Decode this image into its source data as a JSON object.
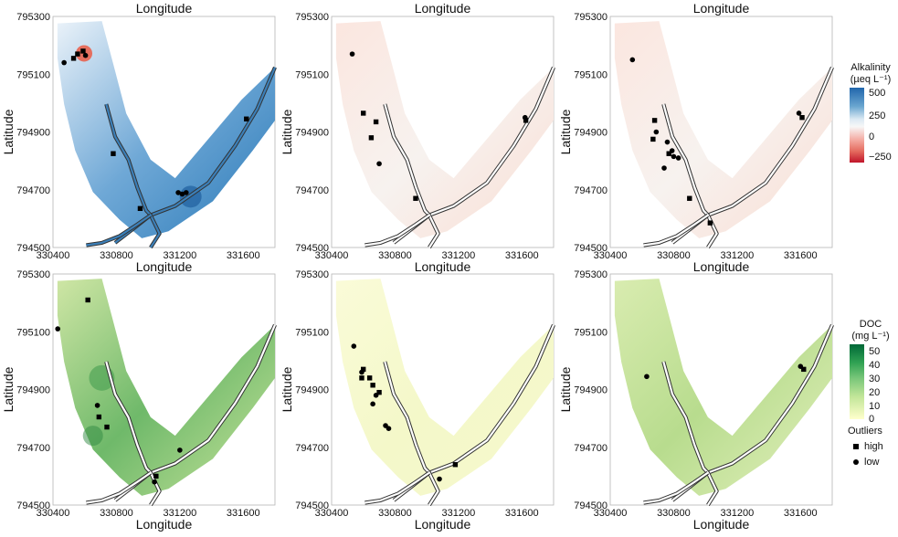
{
  "chart_data": {
    "type": "scatter",
    "colors": {
      "alk_low": "#c0142a",
      "alk_zero": "#f7f7f7",
      "alk_high": "#2166ac",
      "doc_low": "#ffffe5",
      "doc_high": "#006837",
      "river": "#ffffff",
      "river_outline": "#333333",
      "marker": "#000000",
      "panel_border": "#b5b5b5"
    },
    "panels": [
      {
        "variable": "Alkalinity",
        "xlabel": "Longitude",
        "ylabel": "Latitude",
        "xlim": [
          330400,
          331800
        ],
        "ylim": [
          794500,
          795300
        ],
        "xticks": [
          "330400",
          "330800",
          "331200",
          "331600"
        ],
        "yticks": [
          "794500",
          "794700",
          "794900",
          "795100",
          "795300"
        ],
        "field": "strong",
        "points": [
          {
            "x": 330470,
            "y": 795140,
            "o": "low"
          },
          {
            "x": 330530,
            "y": 795155,
            "o": "high"
          },
          {
            "x": 330555,
            "y": 795170,
            "o": "high"
          },
          {
            "x": 330590,
            "y": 795180,
            "o": "high"
          },
          {
            "x": 330605,
            "y": 795165,
            "o": "low"
          },
          {
            "x": 330780,
            "y": 794825,
            "o": "high"
          },
          {
            "x": 330950,
            "y": 794635,
            "o": "high"
          },
          {
            "x": 331190,
            "y": 794690,
            "o": "low"
          },
          {
            "x": 331215,
            "y": 794685,
            "o": "low"
          },
          {
            "x": 331240,
            "y": 794690,
            "o": "low"
          },
          {
            "x": 331620,
            "y": 794945,
            "o": "high"
          }
        ]
      },
      {
        "variable": "Alkalinity",
        "xlabel": "Longitude",
        "ylabel": "Latitude",
        "xlim": [
          330400,
          331800
        ],
        "ylim": [
          794500,
          795300
        ],
        "xticks": [
          "330400",
          "330800",
          "331200",
          "331600"
        ],
        "yticks": [
          "794500",
          "794700",
          "794900",
          "795100",
          "795300"
        ],
        "field": "faint",
        "points": [
          {
            "x": 330530,
            "y": 795170,
            "o": "low"
          },
          {
            "x": 330600,
            "y": 794965,
            "o": "high"
          },
          {
            "x": 330680,
            "y": 794935,
            "o": "high"
          },
          {
            "x": 330650,
            "y": 794880,
            "o": "high"
          },
          {
            "x": 330700,
            "y": 794790,
            "o": "low"
          },
          {
            "x": 330930,
            "y": 794670,
            "o": "high"
          },
          {
            "x": 331620,
            "y": 794950,
            "o": "low"
          },
          {
            "x": 331625,
            "y": 794940,
            "o": "high"
          }
        ]
      },
      {
        "variable": "Alkalinity",
        "xlabel": "Longitude",
        "ylabel": "Latitude",
        "xlim": [
          330400,
          331800
        ],
        "ylim": [
          794500,
          795300
        ],
        "xticks": [
          "330400",
          "330800",
          "331200",
          "331600"
        ],
        "yticks": [
          "794500",
          "794700",
          "794900",
          "795100",
          "795300"
        ],
        "field": "faint",
        "points": [
          {
            "x": 330540,
            "y": 795150,
            "o": "low"
          },
          {
            "x": 330680,
            "y": 794940,
            "o": "high"
          },
          {
            "x": 330670,
            "y": 794875,
            "o": "high"
          },
          {
            "x": 330690,
            "y": 794900,
            "o": "low"
          },
          {
            "x": 330770,
            "y": 794825,
            "o": "high"
          },
          {
            "x": 330790,
            "y": 794835,
            "o": "low"
          },
          {
            "x": 330800,
            "y": 794815,
            "o": "low"
          },
          {
            "x": 330740,
            "y": 794775,
            "o": "low"
          },
          {
            "x": 330760,
            "y": 794865,
            "o": "low"
          },
          {
            "x": 330830,
            "y": 794810,
            "o": "low"
          },
          {
            "x": 330900,
            "y": 794670,
            "o": "high"
          },
          {
            "x": 331030,
            "y": 794585,
            "o": "high"
          },
          {
            "x": 331590,
            "y": 794965,
            "o": "low"
          },
          {
            "x": 331610,
            "y": 794950,
            "o": "high"
          }
        ]
      },
      {
        "variable": "DOC",
        "xlabel": "Longitude",
        "ylabel": "Latitude",
        "xlim": [
          330400,
          331800
        ],
        "ylim": [
          794500,
          795300
        ],
        "xticks": [
          "330400",
          "330800",
          "331200",
          "331600"
        ],
        "yticks": [
          "794500",
          "794700",
          "794900",
          "795100",
          "795300"
        ],
        "field": "strong",
        "points": [
          {
            "x": 330430,
            "y": 795110,
            "o": "low"
          },
          {
            "x": 330620,
            "y": 795210,
            "o": "high"
          },
          {
            "x": 330680,
            "y": 794845,
            "o": "low"
          },
          {
            "x": 330690,
            "y": 794805,
            "o": "high"
          },
          {
            "x": 330740,
            "y": 794770,
            "o": "high"
          },
          {
            "x": 331050,
            "y": 794600,
            "o": "high"
          },
          {
            "x": 331040,
            "y": 794580,
            "o": "low"
          },
          {
            "x": 331200,
            "y": 794690,
            "o": "low"
          }
        ]
      },
      {
        "variable": "DOC",
        "xlabel": "Longitude",
        "ylabel": "Latitude",
        "xlim": [
          330400,
          331800
        ],
        "ylim": [
          794500,
          795300
        ],
        "xticks": [
          "330400",
          "330800",
          "331200",
          "331600"
        ],
        "yticks": [
          "794500",
          "794700",
          "794900",
          "795100",
          "795300"
        ],
        "field": "faint",
        "points": [
          {
            "x": 330540,
            "y": 795050,
            "o": "low"
          },
          {
            "x": 330590,
            "y": 794960,
            "o": "low"
          },
          {
            "x": 330600,
            "y": 794970,
            "o": "high"
          },
          {
            "x": 330590,
            "y": 794940,
            "o": "high"
          },
          {
            "x": 330640,
            "y": 794940,
            "o": "high"
          },
          {
            "x": 330660,
            "y": 794915,
            "o": "high"
          },
          {
            "x": 330680,
            "y": 794880,
            "o": "low"
          },
          {
            "x": 330700,
            "y": 794890,
            "o": "high"
          },
          {
            "x": 330660,
            "y": 794850,
            "o": "low"
          },
          {
            "x": 330740,
            "y": 794775,
            "o": "low"
          },
          {
            "x": 330760,
            "y": 794765,
            "o": "low"
          },
          {
            "x": 331080,
            "y": 794590,
            "o": "low"
          },
          {
            "x": 331180,
            "y": 794640,
            "o": "high"
          }
        ]
      },
      {
        "variable": "DOC",
        "xlabel": "Longitude",
        "ylabel": "Latitude",
        "xlim": [
          330400,
          331800
        ],
        "ylim": [
          794500,
          795300
        ],
        "xticks": [
          "330400",
          "330800",
          "331200",
          "331600"
        ],
        "yticks": [
          "794500",
          "794700",
          "794900",
          "795100",
          "795300"
        ],
        "field": "medium",
        "points": [
          {
            "x": 330630,
            "y": 794945,
            "o": "low"
          },
          {
            "x": 331600,
            "y": 794980,
            "o": "low"
          },
          {
            "x": 331620,
            "y": 794970,
            "o": "high"
          }
        ]
      }
    ],
    "top_titles": [
      "Longitude",
      "Longitude",
      "Longitude"
    ],
    "legends": {
      "alkalinity": {
        "title_line1": "Alkalinity",
        "title_line2": "(µeq L⁻¹)",
        "ticks": [
          "500",
          "250",
          "0",
          "−250"
        ],
        "tick_values": [
          500,
          250,
          0,
          -250
        ],
        "range": [
          -330,
          580
        ]
      },
      "doc": {
        "title_line1": "DOC",
        "title_line2": "(mg L⁻¹)",
        "ticks": [
          "50",
          "40",
          "30",
          "20",
          "10",
          "0"
        ],
        "tick_values": [
          50,
          40,
          30,
          20,
          10,
          0
        ],
        "range": [
          0,
          55
        ]
      },
      "outliers": {
        "title": "Outliers",
        "items": [
          {
            "label": "high",
            "marker": "square"
          },
          {
            "label": "low",
            "marker": "circle"
          }
        ]
      }
    }
  }
}
